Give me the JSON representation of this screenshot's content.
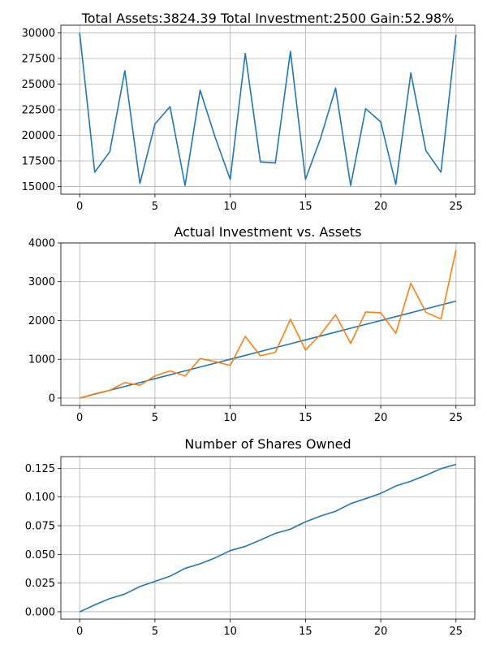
{
  "chart_data": [
    {
      "type": "line",
      "title": "Total Assets:3824.39  Total Investment:2500  Gain:52.98%",
      "xlabel": "",
      "ylabel": "",
      "grid": true,
      "xlim": [
        -1.25,
        26.25
      ],
      "ylim": [
        14250,
        30750
      ],
      "xticks": [
        0,
        5,
        10,
        15,
        20,
        25
      ],
      "yticks": [
        15000,
        17500,
        20000,
        22500,
        25000,
        27500,
        30000
      ],
      "x": [
        0,
        1,
        2,
        3,
        4,
        5,
        6,
        7,
        8,
        9,
        10,
        11,
        12,
        13,
        14,
        15,
        16,
        17,
        18,
        19,
        20,
        21,
        22,
        23,
        24,
        25
      ],
      "series": [
        {
          "color": "#1f77b4",
          "values": [
            30000,
            16400,
            18400,
            26300,
            15300,
            21100,
            22800,
            15100,
            24400,
            19800,
            15700,
            28000,
            17400,
            17300,
            28200,
            15700,
            19700,
            24600,
            15100,
            22600,
            21300,
            15200,
            26100,
            18500,
            16400,
            29800
          ]
        }
      ]
    },
    {
      "type": "line",
      "title": "Actual Investment vs. Assets",
      "xlabel": "",
      "ylabel": "",
      "grid": true,
      "xlim": [
        -1.25,
        26.25
      ],
      "ylim": [
        -190,
        4000
      ],
      "xticks": [
        0,
        5,
        10,
        15,
        20,
        25
      ],
      "yticks": [
        0,
        1000,
        2000,
        3000,
        4000
      ],
      "x": [
        0,
        1,
        2,
        3,
        4,
        5,
        6,
        7,
        8,
        9,
        10,
        11,
        12,
        13,
        14,
        15,
        16,
        17,
        18,
        19,
        20,
        21,
        22,
        23,
        24,
        25
      ],
      "series": [
        {
          "color": "#1f77b4",
          "values": [
            0,
            100,
            200,
            300,
            400,
            500,
            600,
            700,
            800,
            900,
            1000,
            1100,
            1200,
            1300,
            1400,
            1500,
            1600,
            1700,
            1800,
            1900,
            2000,
            2100,
            2200,
            2300,
            2400,
            2500
          ]
        },
        {
          "color": "#ff7f0e",
          "values": [
            0,
            110,
            200,
            400,
            330,
            570,
            700,
            570,
            1020,
            940,
            840,
            1590,
            1090,
            1180,
            2030,
            1240,
            1640,
            2150,
            1410,
            2220,
            2200,
            1670,
            2960,
            2210,
            2040,
            3824
          ]
        }
      ]
    },
    {
      "type": "line",
      "title": "Number of Shares Owned",
      "xlabel": "",
      "ylabel": "",
      "grid": true,
      "xlim": [
        -1.25,
        26.25
      ],
      "ylim": [
        -0.0064,
        0.1352
      ],
      "xticks": [
        0,
        5,
        10,
        15,
        20,
        25
      ],
      "yticks": [
        0.0,
        0.025,
        0.05,
        0.075,
        0.1,
        0.125
      ],
      "ytick_labels": [
        "0.000",
        "0.025",
        "0.050",
        "0.075",
        "0.100",
        "0.125"
      ],
      "x": [
        0,
        1,
        2,
        3,
        4,
        5,
        6,
        7,
        8,
        9,
        10,
        11,
        12,
        13,
        14,
        15,
        16,
        17,
        18,
        19,
        20,
        21,
        22,
        23,
        24,
        25
      ],
      "series": [
        {
          "color": "#1f77b4",
          "values": [
            0.0,
            0.006,
            0.0115,
            0.0155,
            0.022,
            0.0265,
            0.031,
            0.0378,
            0.0418,
            0.047,
            0.0533,
            0.057,
            0.0625,
            0.0683,
            0.072,
            0.0784,
            0.0834,
            0.0876,
            0.0942,
            0.0986,
            0.1032,
            0.1096,
            0.1138,
            0.1189,
            0.1247,
            0.1285
          ]
        }
      ]
    }
  ]
}
